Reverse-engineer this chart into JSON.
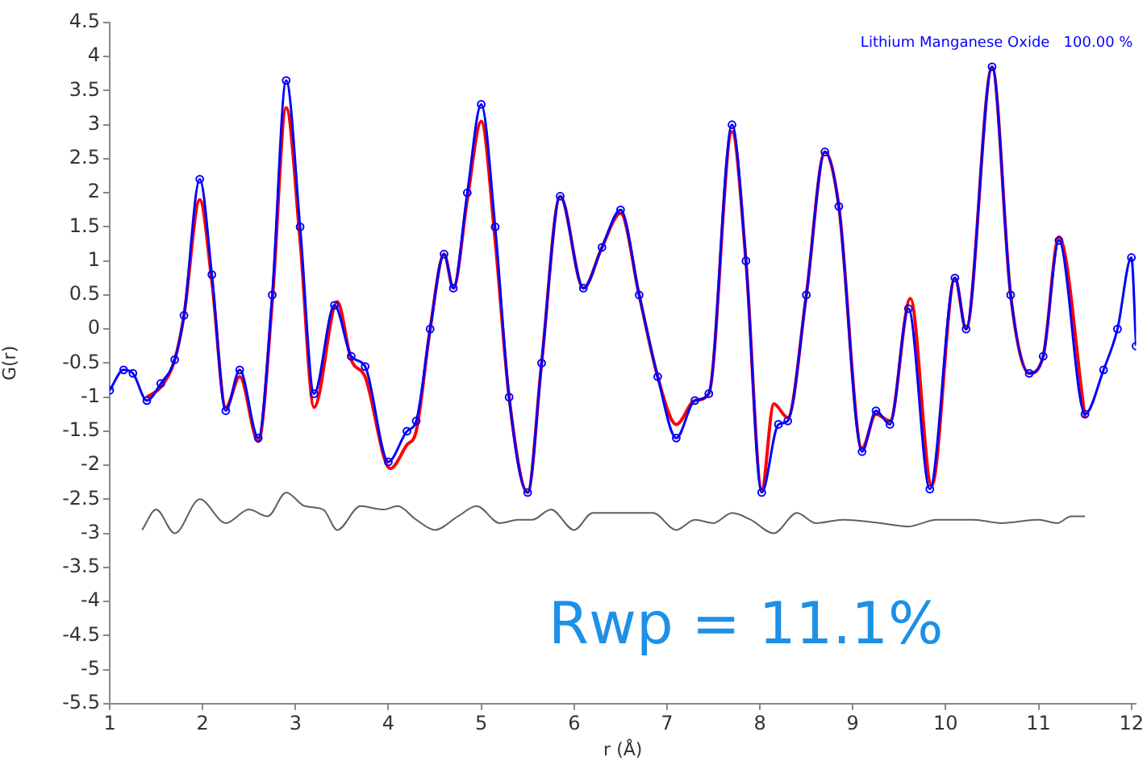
{
  "chart_data": {
    "type": "line",
    "xlabel": "r (Å)",
    "ylabel": "G(r)",
    "annotations": [
      "Lithium Manganese Oxide   100.00 %",
      "Rwp = 11.1%"
    ],
    "xlim": [
      1,
      12.05
    ],
    "xticks": [
      1,
      2,
      3,
      4,
      5,
      6,
      7,
      8,
      9,
      10,
      11,
      12
    ],
    "ylim": [
      -5.5,
      4.5
    ],
    "yticks": [
      -5.5,
      -5,
      -4.5,
      -4,
      -3.5,
      -3,
      -2.5,
      -2,
      -1.5,
      -1,
      -0.5,
      0,
      0.5,
      1,
      1.5,
      2,
      2.5,
      3,
      3.5,
      4,
      4.5
    ],
    "grid": false,
    "series": [
      {
        "marker": "circle",
        "color": "#0000ff",
        "x": [
          1.0,
          1.15,
          1.25,
          1.4,
          1.55,
          1.7,
          1.8,
          1.97,
          2.1,
          2.25,
          2.4,
          2.6,
          2.75,
          2.9,
          3.05,
          3.2,
          3.42,
          3.6,
          3.75,
          4.0,
          4.2,
          4.3,
          4.45,
          4.6,
          4.7,
          4.85,
          5.0,
          5.15,
          5.3,
          5.5,
          5.65,
          5.85,
          6.1,
          6.3,
          6.5,
          6.7,
          6.9,
          7.1,
          7.3,
          7.45,
          7.7,
          7.85,
          8.02,
          8.2,
          8.3,
          8.5,
          8.7,
          8.85,
          9.1,
          9.25,
          9.4,
          9.6,
          9.83,
          10.1,
          10.22,
          10.5,
          10.7,
          10.9,
          11.05,
          11.22,
          11.5,
          11.7,
          11.85,
          12.0,
          12.05
        ],
        "values": [
          -0.9,
          -0.6,
          -0.65,
          -1.05,
          -0.8,
          -0.45,
          0.2,
          2.2,
          0.8,
          -1.2,
          -0.6,
          -1.6,
          0.5,
          3.65,
          1.5,
          -0.95,
          0.35,
          -0.4,
          -0.55,
          -1.95,
          -1.5,
          -1.35,
          0,
          1.1,
          0.6,
          2.0,
          3.3,
          1.5,
          -1.0,
          -2.4,
          -0.5,
          1.95,
          0.6,
          1.2,
          1.75,
          0.5,
          -0.7,
          -1.6,
          -1.05,
          -0.95,
          3.0,
          1.0,
          -2.4,
          -1.4,
          -1.35,
          0.5,
          2.6,
          1.8,
          -1.8,
          -1.2,
          -1.4,
          0.3,
          -2.35,
          0.75,
          0.0,
          3.85,
          0.5,
          -0.65,
          -0.4,
          1.3,
          -1.25,
          -0.6,
          0.0,
          1.05,
          -0.25
        ]
      },
      {
        "marker": "none",
        "color": "#ff0000",
        "x": [
          1.4,
          1.55,
          1.7,
          1.8,
          1.97,
          2.1,
          2.25,
          2.4,
          2.6,
          2.75,
          2.9,
          3.05,
          3.2,
          3.45,
          3.6,
          3.75,
          4.02,
          4.2,
          4.3,
          4.45,
          4.6,
          4.7,
          4.85,
          5.0,
          5.15,
          5.3,
          5.5,
          5.65,
          5.85,
          6.1,
          6.3,
          6.5,
          6.7,
          6.9,
          7.1,
          7.3,
          7.45,
          7.7,
          7.85,
          8.02,
          8.15,
          8.3,
          8.5,
          8.7,
          8.85,
          9.1,
          9.25,
          9.4,
          9.62,
          9.85,
          10.1,
          10.22,
          10.5,
          10.7,
          10.9,
          11.05,
          11.22,
          11.5
        ],
        "values": [
          -1.0,
          -0.85,
          -0.45,
          0.2,
          1.9,
          0.7,
          -1.15,
          -0.7,
          -1.65,
          0.4,
          3.25,
          1.3,
          -1.15,
          0.4,
          -0.45,
          -0.7,
          -2.05,
          -1.7,
          -1.5,
          0,
          1.1,
          0.6,
          1.9,
          3.05,
          1.3,
          -1.0,
          -2.4,
          -0.5,
          1.95,
          0.6,
          1.2,
          1.7,
          0.5,
          -0.7,
          -1.4,
          -1.05,
          -0.95,
          2.9,
          1.0,
          -2.35,
          -1.1,
          -1.3,
          0.5,
          2.6,
          1.8,
          -1.75,
          -1.25,
          -1.35,
          0.45,
          -2.3,
          0.75,
          0.0,
          3.85,
          0.5,
          -0.65,
          -0.4,
          1.35,
          -1.3
        ]
      },
      {
        "marker": "none",
        "color": "#606060",
        "x": [
          1.35,
          1.5,
          1.7,
          1.97,
          2.25,
          2.5,
          2.7,
          2.9,
          3.1,
          3.3,
          3.45,
          3.7,
          3.95,
          4.1,
          4.3,
          4.5,
          4.75,
          4.95,
          5.2,
          5.4,
          5.55,
          5.75,
          6.0,
          6.2,
          6.5,
          6.85,
          7.1,
          7.3,
          7.5,
          7.7,
          7.9,
          8.15,
          8.4,
          8.6,
          8.9,
          9.3,
          9.6,
          9.9,
          10.3,
          10.6,
          11.0,
          11.2,
          11.35,
          11.5
        ],
        "values": [
          -2.95,
          -2.65,
          -3.0,
          -2.5,
          -2.85,
          -2.65,
          -2.75,
          -2.4,
          -2.6,
          -2.65,
          -2.95,
          -2.6,
          -2.65,
          -2.6,
          -2.8,
          -2.95,
          -2.75,
          -2.6,
          -2.85,
          -2.8,
          -2.8,
          -2.65,
          -2.95,
          -2.7,
          -2.7,
          -2.7,
          -2.95,
          -2.8,
          -2.85,
          -2.7,
          -2.8,
          -3.0,
          -2.7,
          -2.85,
          -2.8,
          -2.85,
          -2.9,
          -2.8,
          -2.8,
          -2.85,
          -2.8,
          -2.85,
          -2.75,
          -2.75
        ]
      }
    ]
  }
}
